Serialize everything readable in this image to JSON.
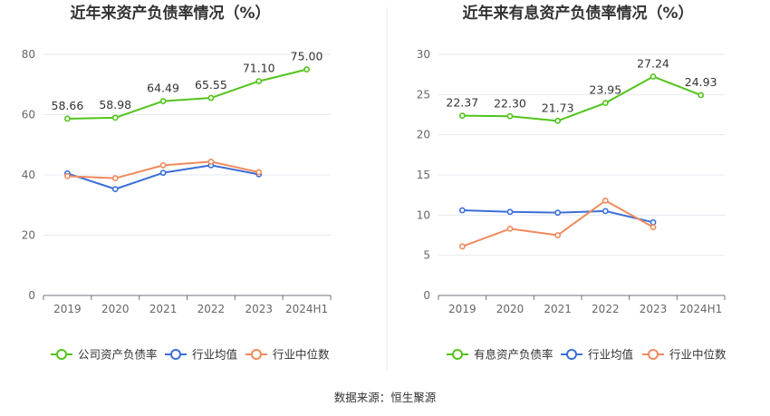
{
  "source": "数据来源：恒生聚源",
  "chart_data": [
    {
      "type": "line",
      "title": "近年来资产负债率情况（%）",
      "categories": [
        "2019",
        "2020",
        "2021",
        "2022",
        "2023",
        "2024H1"
      ],
      "ylim": [
        0,
        80
      ],
      "yticks": [
        0,
        20,
        40,
        60,
        80
      ],
      "grid": true,
      "legend_position": "bottom",
      "series": [
        {
          "name": "公司资产负债率",
          "color": "#52c41a",
          "labels": true,
          "values": [
            58.66,
            58.98,
            64.49,
            65.55,
            71.1,
            75.0
          ],
          "value_labels": [
            "58.66",
            "58.98",
            "64.49",
            "65.55",
            "71.10",
            "75.00"
          ]
        },
        {
          "name": "行业均值",
          "color": "#3b6fd8",
          "labels": false,
          "values": [
            40.5,
            35.3,
            40.7,
            43.2,
            40.2,
            null
          ]
        },
        {
          "name": "行业中位数",
          "color": "#f08a5d",
          "labels": false,
          "values": [
            39.6,
            38.9,
            43.2,
            44.4,
            40.9,
            null
          ]
        }
      ]
    },
    {
      "type": "line",
      "title": "近年来有息资产负债率情况（%）",
      "categories": [
        "2019",
        "2020",
        "2021",
        "2022",
        "2023",
        "2024H1"
      ],
      "ylim": [
        0,
        30
      ],
      "yticks": [
        0,
        5,
        10,
        15,
        20,
        25,
        30
      ],
      "grid": true,
      "legend_position": "bottom",
      "series": [
        {
          "name": "有息资产负债率",
          "color": "#52c41a",
          "labels": true,
          "values": [
            22.37,
            22.3,
            21.73,
            23.95,
            27.24,
            24.93
          ],
          "value_labels": [
            "22.37",
            "22.30",
            "21.73",
            "23.95",
            "27.24",
            "24.93"
          ]
        },
        {
          "name": "行业均值",
          "color": "#3b6fd8",
          "labels": false,
          "values": [
            10.6,
            10.4,
            10.3,
            10.5,
            9.1,
            null
          ]
        },
        {
          "name": "行业中位数",
          "color": "#f08a5d",
          "labels": false,
          "values": [
            6.1,
            8.3,
            7.5,
            11.8,
            8.5,
            null
          ]
        }
      ]
    }
  ]
}
